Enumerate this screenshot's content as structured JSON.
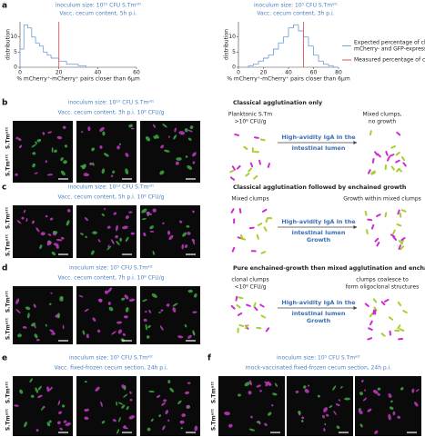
{
  "panel_a_label": "a",
  "chart_data": [
    {
      "type": "histogram",
      "title": "inoculum size: 10¹⁰ CFU S.Tmᵃᵗᵗ",
      "subtitle": "Vacc. cecum content, 5h p.i.",
      "xlabel": "% mCherry⁺-mCherry⁺ pairs closer than 6µm",
      "ylabel": "distribution",
      "bins": [
        0,
        2,
        4,
        6,
        8,
        10,
        12,
        14,
        16,
        18,
        20,
        22,
        24,
        26,
        28,
        30,
        32,
        34,
        36
      ],
      "values": [
        6,
        14,
        13,
        10,
        8,
        7,
        5,
        4,
        3,
        3,
        2,
        2,
        1,
        1,
        1,
        0.5,
        0.5,
        0
      ],
      "color": "#7aa6d8",
      "xlim": [
        0,
        60
      ],
      "ylim": [
        0,
        15
      ],
      "xticks": [
        0,
        20,
        40,
        60
      ],
      "yticks": [
        0,
        5,
        10
      ],
      "reference_line": {
        "value": 20,
        "color": "#e8535a"
      }
    },
    {
      "type": "histogram",
      "title": "inoculum size: 10⁵ CFU S.Tmᵃᵗᵗ",
      "subtitle": "Vacc. cecum content, 3h p.i.",
      "xlabel": "% mCherry⁺-mCherry⁺ pairs closer than 6µm",
      "ylabel": "distribution",
      "bins": [
        8,
        12,
        16,
        20,
        24,
        28,
        32,
        36,
        40,
        44,
        48,
        52,
        56,
        60,
        64,
        68,
        72,
        76,
        80
      ],
      "values": [
        0.5,
        1,
        2,
        3,
        4,
        6,
        8,
        10,
        13,
        14,
        12,
        10,
        7,
        4,
        2,
        1,
        0.5,
        0
      ],
      "color": "#7aa6d8",
      "xlim": [
        0,
        80
      ],
      "ylim": [
        0,
        15
      ],
      "xticks": [
        0,
        20,
        40,
        60,
        80
      ],
      "yticks": [
        0,
        5,
        10
      ],
      "reference_line": {
        "value": 52,
        "color": "#e8535a"
      }
    }
  ],
  "legend": [
    {
      "lines": [
        "Expected percentage of clustered mCherry-expressing pairs if",
        "mCherry- and GFP-expressing bacteria were randomly clustered"
      ],
      "color": "#7aa6d8"
    },
    {
      "lines": [
        "Measured percentage of clustered mCherry-expressing pairs"
      ],
      "color": "#e8535a"
    }
  ],
  "panels": [
    {
      "label": "b",
      "header": [
        "inoculum size: 10¹⁰ CFU S.Tmᵃᵗᵗ",
        "Vacc. cecum content, 3h p.i. 10⁸ CFU/g"
      ],
      "channels": [
        "S.Tmᵃᵗᵗ",
        "S.Tmᵃᵗᵗ"
      ],
      "diagram": {
        "title": "Classical agglutination only",
        "left": [
          "Planktonic S.Tm",
          ">10⁸ CFU/g"
        ],
        "arrow": [
          "High-avidity IgA in the",
          "intestinal lumen"
        ],
        "right": [
          "Mixed clumps,",
          "no growth"
        ]
      }
    },
    {
      "label": "c",
      "header": [
        "inoculum size: 10¹⁰ CFU S.Tmᵃᵗᵗ",
        "Vacc. cecum content, 5h p.i. 10⁸ CFU/g"
      ],
      "channels": [
        "S.Tmᵃᵗᵗ",
        "S.Tmᵃᵗᵗ"
      ],
      "diagram": {
        "title": "Classical agglutination followed by enchained growth",
        "left": [
          "Mixed clumps"
        ],
        "arrow": [
          "High-avidity IgA in the",
          "intestinal lumen",
          "Growth"
        ],
        "right": [
          "Growth within mixed clumps"
        ]
      }
    },
    {
      "label": "d",
      "header": [
        "inoculum size: 10⁵ CFU S.Tmᵃᵗᵗ",
        "Vacc. cecum content, 7h p.i. 10⁸ CFU/g"
      ],
      "channels": [
        "S.Tmᵃᵗᵗ",
        "S.Tmᵃᵗᵗ"
      ],
      "diagram": {
        "title": "Pure enchained-growth then mixed agglutination and enchained growth",
        "left": [
          "clonal clumps",
          "<10⁸ CFU/g"
        ],
        "arrow": [
          "High-avidity IgA in the",
          "intestinal lumen",
          "Growth"
        ],
        "right": [
          "clumps coalesce to",
          "form oligoclonal structures"
        ]
      }
    },
    {
      "label": "e",
      "header": [
        "inoculum size: 10⁵ CFU S.Tmᵃᵗᵗ",
        "Vacc. fixed-frozen cecum section, 24h p.i."
      ],
      "channels": [
        "S.Tmᵃᵗᵗ",
        "S.Tmᵃᵗᵗ"
      ]
    },
    {
      "label": "f",
      "header": [
        "inoculum size: 10⁵ CFU S.Tmᵃᵗᵗ",
        "mock-vaccinated fixed-frozen cecum section, 24h p.i."
      ],
      "channels": [
        "S.Tmᵃᵗᵗ",
        "S.Tmᵃᵗᵗ"
      ]
    }
  ]
}
